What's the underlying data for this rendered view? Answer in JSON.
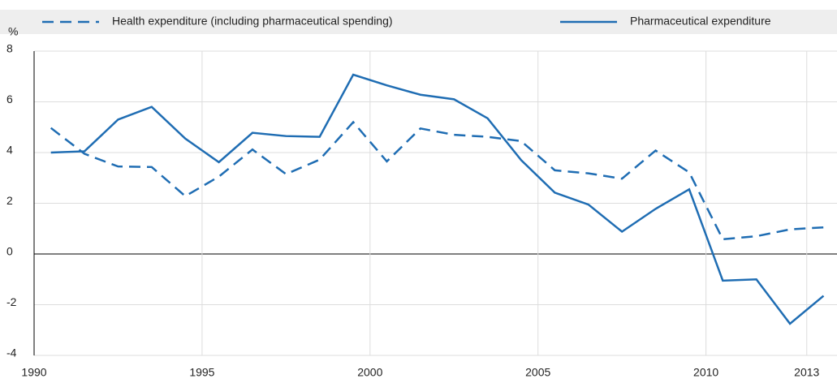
{
  "chart_data": {
    "type": "line",
    "y_axis_label": "%",
    "x": [
      1990.5,
      1991.5,
      1992.5,
      1993.5,
      1994.5,
      1995.5,
      1996.5,
      1997.5,
      1998.5,
      1999.5,
      2000.5,
      2001.5,
      2002.5,
      2003.5,
      2004.5,
      2005.5,
      2006.5,
      2007.5,
      2008.5,
      2009.5,
      2010.5,
      2011.5,
      2012.5,
      2013.5
    ],
    "series": [
      {
        "name": "Health expenditure (including pharmaceutical spending)",
        "color": "#1f6db3",
        "dashed": true,
        "values": [
          4.97,
          3.95,
          3.45,
          3.43,
          2.28,
          3.05,
          4.12,
          3.15,
          3.72,
          5.2,
          3.65,
          4.95,
          4.7,
          4.62,
          4.45,
          3.3,
          3.18,
          2.97,
          4.08,
          3.22,
          0.58,
          0.7,
          0.97,
          1.05
        ]
      },
      {
        "name": "Pharmaceutical expenditure",
        "color": "#1f6db3",
        "dashed": false,
        "values": [
          4.0,
          4.05,
          5.3,
          5.8,
          4.55,
          3.62,
          4.78,
          4.65,
          4.62,
          7.07,
          6.65,
          6.28,
          6.1,
          5.35,
          3.7,
          2.42,
          1.95,
          0.88,
          1.78,
          2.55,
          -1.05,
          -1.0,
          -2.75,
          -1.65
        ]
      }
    ],
    "xlim": [
      1990,
      2013.9
    ],
    "xticks": [
      1990,
      1995,
      2000,
      2005,
      2010,
      2013
    ],
    "ylim": [
      -4,
      8
    ],
    "yticks": [
      -4,
      -2,
      0,
      2,
      4,
      6,
      8
    ],
    "grid": true
  }
}
